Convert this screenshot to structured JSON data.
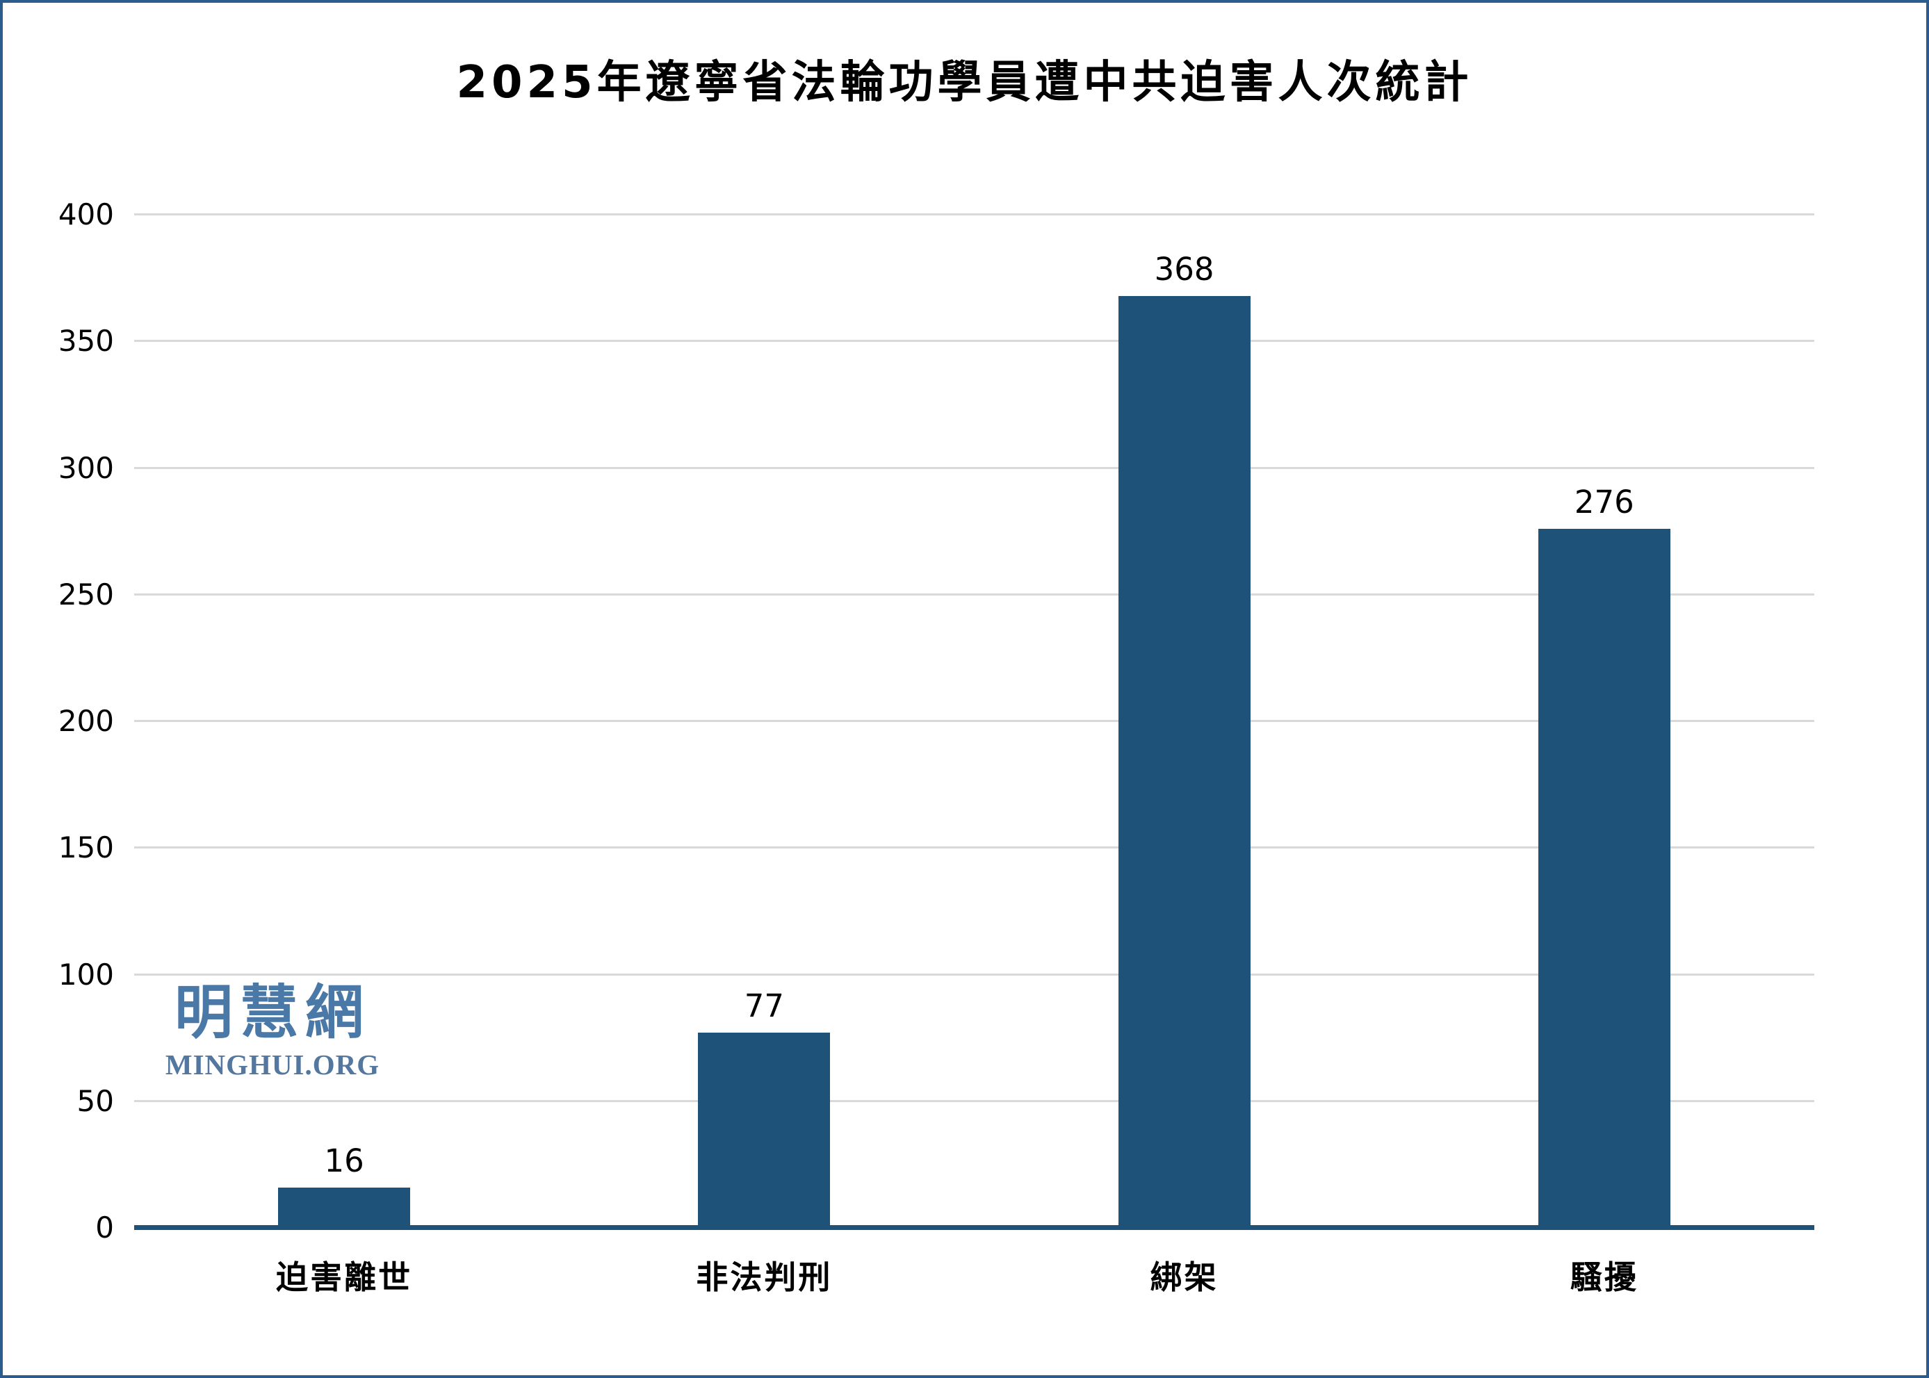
{
  "page": {
    "background": "#ffffff",
    "border_color": "#2a5c8d"
  },
  "chart_data": {
    "type": "bar",
    "title": "2025年遼寧省法輪功學員遭中共迫害人次統計",
    "categories": [
      "迫害離世",
      "非法判刑",
      "綁架",
      "騷擾"
    ],
    "values": [
      16,
      77,
      368,
      276
    ],
    "xlabel": "",
    "ylabel": "",
    "ylim": [
      0,
      400
    ],
    "yticks": [
      0,
      50,
      100,
      150,
      200,
      250,
      300,
      350,
      400
    ],
    "grid": true,
    "legend": false,
    "bar_color": "#1f5279",
    "axis_color": "#1f5279",
    "gridline_color": "#d9d9d9",
    "value_label_color": "#000000"
  },
  "watermark": {
    "cjk": "明慧網",
    "latin": "MINGHUI.ORG",
    "color": "#4a79a8"
  }
}
